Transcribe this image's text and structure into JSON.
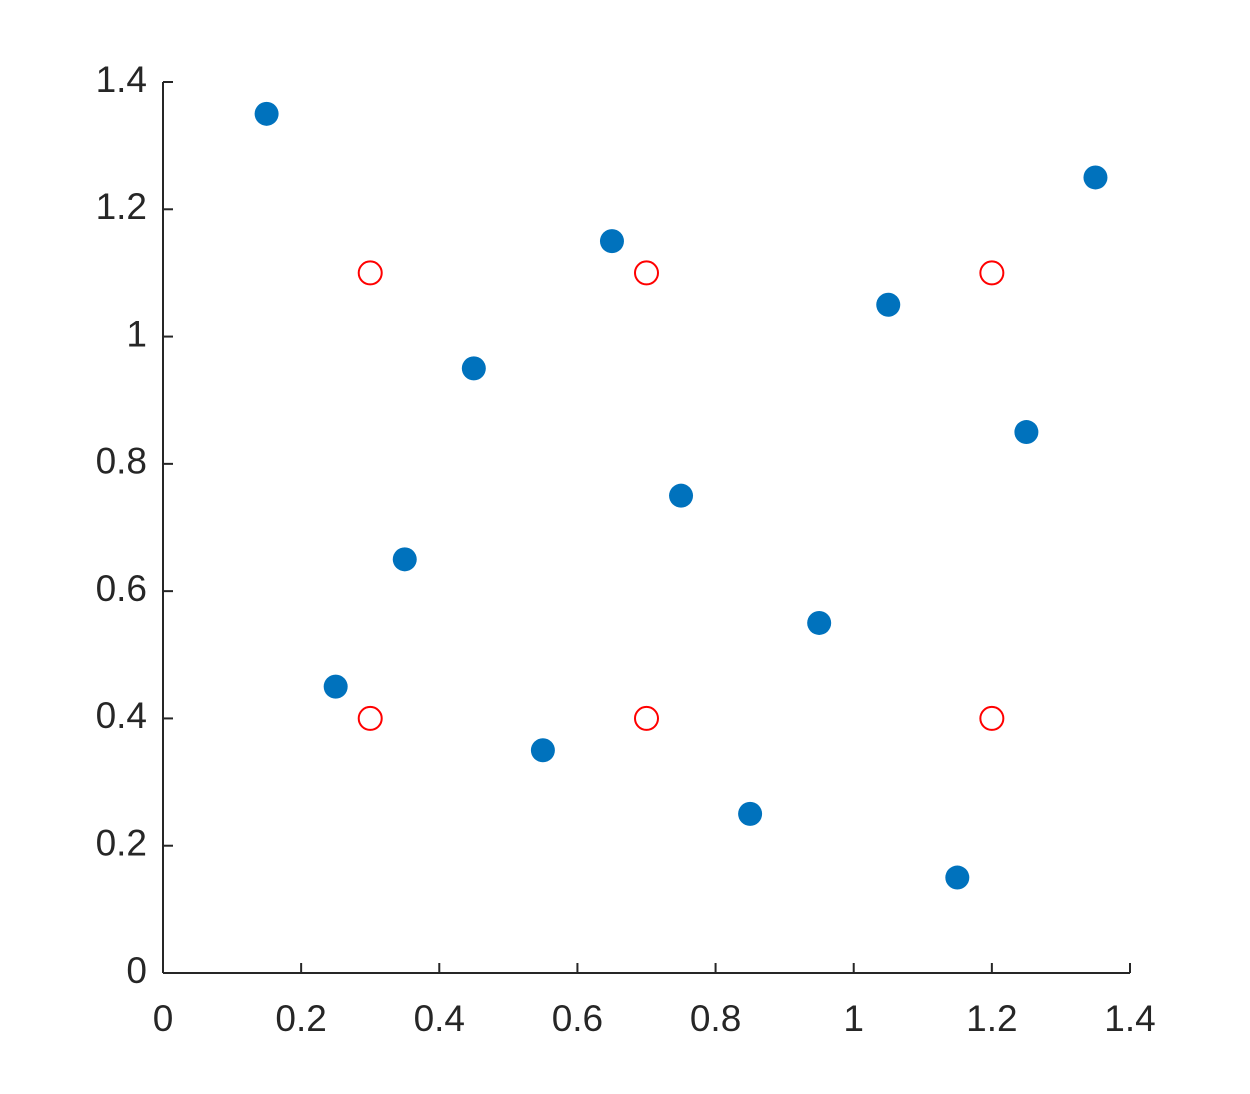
{
  "chart_data": {
    "type": "scatter",
    "series": [
      {
        "color": "#0072bd",
        "filled": true,
        "x": [
          0.15,
          0.25,
          0.35,
          0.45,
          0.55,
          0.65,
          0.75,
          0.85,
          0.95,
          1.05,
          1.15,
          1.25,
          1.35
        ],
        "values": [
          1.35,
          0.45,
          0.65,
          0.95,
          0.35,
          1.15,
          0.75,
          0.25,
          0.55,
          1.05,
          0.15,
          0.85,
          1.25
        ]
      },
      {
        "color": "#ff0000",
        "filled": false,
        "x": [
          0.3,
          0.7,
          1.2,
          0.3,
          0.7,
          1.2
        ],
        "values": [
          1.1,
          1.1,
          1.1,
          0.4,
          0.4,
          0.4
        ]
      }
    ],
    "xlim": [
      0,
      1.4
    ],
    "ylim": [
      0,
      1.4
    ],
    "xticks": [
      0,
      0.2,
      0.4,
      0.6,
      0.8,
      1,
      1.2,
      1.4
    ],
    "yticks": [
      0,
      0.2,
      0.4,
      0.6,
      0.8,
      1,
      1.2,
      1.4
    ],
    "grid": false
  }
}
